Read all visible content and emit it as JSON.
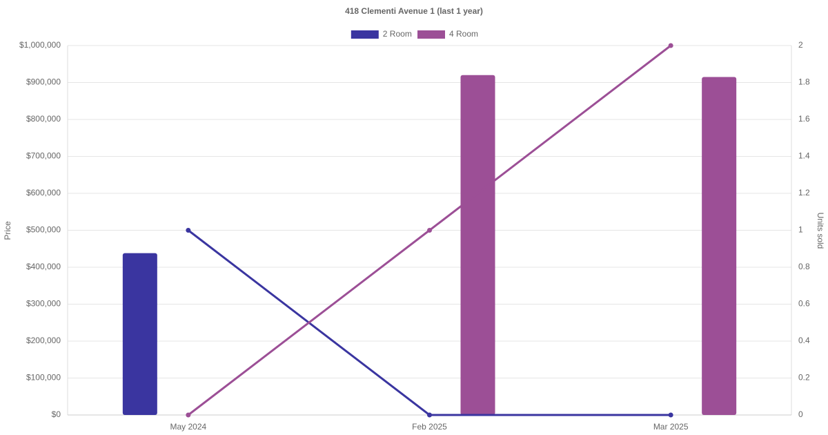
{
  "chart_data": {
    "type": "bar-line",
    "title": "418 Clementi Avenue 1 (last 1 year)",
    "y_label": "Price",
    "y2_label": "Units sold",
    "categories": [
      "May 2024",
      "Feb 2025",
      "Mar 2025"
    ],
    "series": [
      {
        "name": "2 Room",
        "color": "#3a35a0",
        "values": [
          438000,
          null,
          null
        ],
        "y2_values": [
          1,
          0,
          0
        ]
      },
      {
        "name": "4 Room",
        "color": "#9c4f96",
        "values": [
          null,
          920000,
          915000
        ],
        "y2_values": [
          0,
          1,
          2
        ]
      }
    ],
    "ylim": [
      0,
      1000000
    ],
    "yticks": [
      {
        "value": 0,
        "label": "$0"
      },
      {
        "value": 100000,
        "label": "$100,000"
      },
      {
        "value": 200000,
        "label": "$200,000"
      },
      {
        "value": 300000,
        "label": "$300,000"
      },
      {
        "value": 400000,
        "label": "$400,000"
      },
      {
        "value": 500000,
        "label": "$500,000"
      },
      {
        "value": 600000,
        "label": "$600,000"
      },
      {
        "value": 700000,
        "label": "$700,000"
      },
      {
        "value": 800000,
        "label": "$800,000"
      },
      {
        "value": 900000,
        "label": "$900,000"
      },
      {
        "value": 1000000,
        "label": "$1,000,000"
      }
    ],
    "y2lim": [
      0,
      2
    ],
    "y2ticks": [
      0,
      0.2,
      0.4,
      0.6,
      0.8,
      1,
      1.2,
      1.4,
      1.6,
      1.8,
      2
    ],
    "grid": true
  }
}
